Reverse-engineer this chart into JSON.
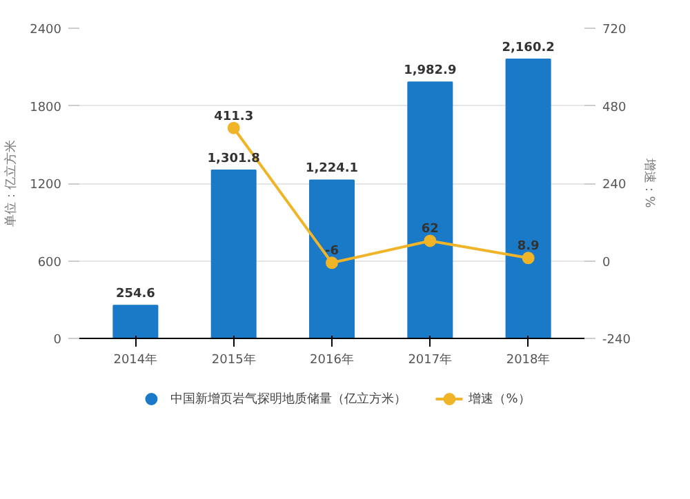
{
  "chart_data": {
    "type": "bar",
    "categories": [
      "2014年",
      "2015年",
      "2016年",
      "2017年",
      "2018年"
    ],
    "ylabel": "单位：亿立方米",
    "y2label": "增速：%",
    "ylim": [
      0,
      2400
    ],
    "yticks": [
      0,
      600,
      1200,
      1800,
      2400
    ],
    "y2lim": [
      -240,
      720
    ],
    "y2ticks": [
      -240,
      0,
      240,
      480,
      720
    ],
    "grid": "y",
    "legend": "bottom",
    "series": [
      {
        "name": "中国新增页岩气探明地质储量（亿立方米）",
        "color": "#1a7ac8",
        "values": [
          254.6,
          1301.8,
          1224.1,
          1982.9,
          2160.2
        ],
        "value_labels": [
          "254.6",
          "1,301.8",
          "1,224.1",
          "1,982.9",
          "2,160.2"
        ]
      },
      {
        "name": "增速（%）",
        "type": "line",
        "axis": "y2",
        "color": "#f0b428",
        "marker": "circle",
        "values": [
          null,
          411.3,
          -6,
          62,
          8.9
        ],
        "value_labels": [
          null,
          "411.3",
          "-6",
          "62",
          "8.9"
        ]
      }
    ]
  }
}
